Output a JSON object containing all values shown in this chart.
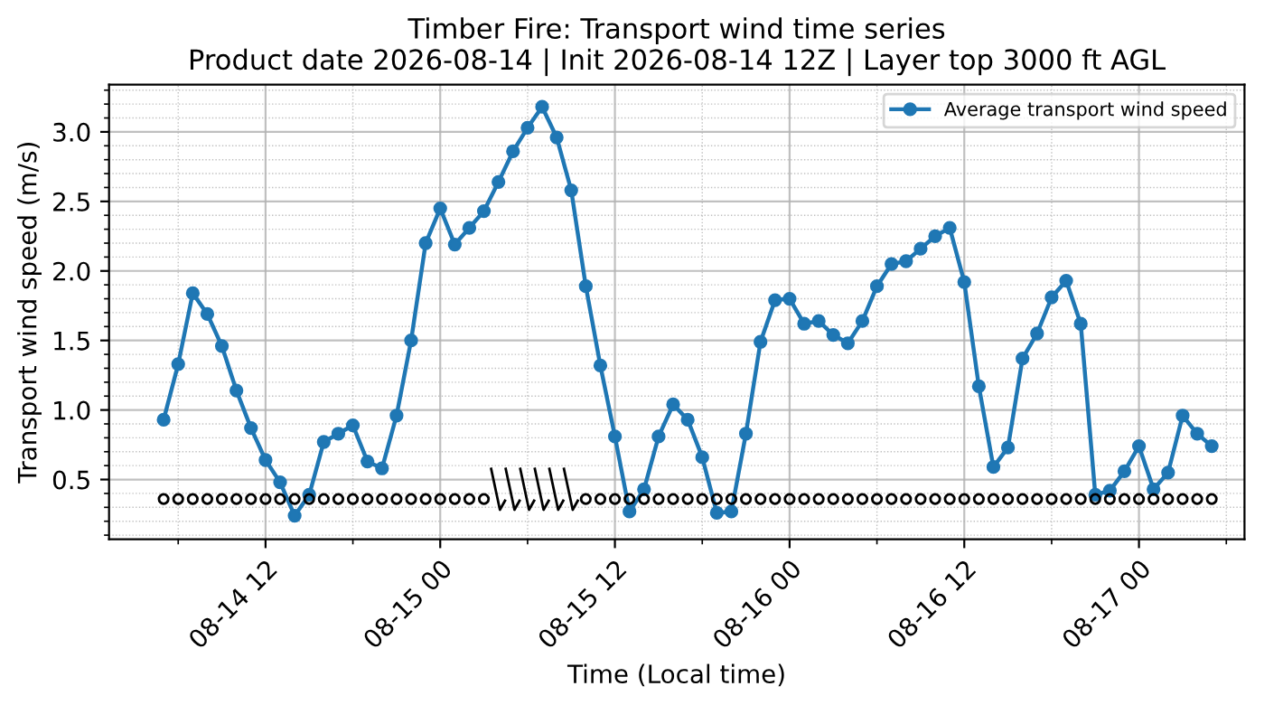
{
  "chart_data": {
    "type": "line",
    "title": "Timber Fire: Transport wind time series",
    "subtitle": "Product date 2026-08-14 | Init 2026-08-14 12Z | Layer top 3000 ft AGL",
    "xlabel": "Time (Local time)",
    "ylabel": "Transport wind speed (m/s)",
    "x": [
      "2026-08-14T05:00",
      "2026-08-14T06:00",
      "2026-08-14T07:00",
      "2026-08-14T08:00",
      "2026-08-14T09:00",
      "2026-08-14T10:00",
      "2026-08-14T11:00",
      "2026-08-14T12:00",
      "2026-08-14T13:00",
      "2026-08-14T14:00",
      "2026-08-14T15:00",
      "2026-08-14T16:00",
      "2026-08-14T17:00",
      "2026-08-14T18:00",
      "2026-08-14T19:00",
      "2026-08-14T20:00",
      "2026-08-14T21:00",
      "2026-08-14T22:00",
      "2026-08-14T23:00",
      "2026-08-15T00:00",
      "2026-08-15T01:00",
      "2026-08-15T02:00",
      "2026-08-15T03:00",
      "2026-08-15T04:00",
      "2026-08-15T05:00",
      "2026-08-15T06:00",
      "2026-08-15T07:00",
      "2026-08-15T08:00",
      "2026-08-15T09:00",
      "2026-08-15T10:00",
      "2026-08-15T11:00",
      "2026-08-15T12:00",
      "2026-08-15T13:00",
      "2026-08-15T14:00",
      "2026-08-15T15:00",
      "2026-08-15T16:00",
      "2026-08-15T17:00",
      "2026-08-15T18:00",
      "2026-08-15T19:00",
      "2026-08-15T20:00",
      "2026-08-15T21:00",
      "2026-08-15T22:00",
      "2026-08-15T23:00",
      "2026-08-16T00:00",
      "2026-08-16T01:00",
      "2026-08-16T02:00",
      "2026-08-16T03:00",
      "2026-08-16T04:00",
      "2026-08-16T05:00",
      "2026-08-16T06:00",
      "2026-08-16T07:00",
      "2026-08-16T08:00",
      "2026-08-16T09:00",
      "2026-08-16T10:00",
      "2026-08-16T11:00",
      "2026-08-16T12:00",
      "2026-08-16T13:00",
      "2026-08-16T14:00",
      "2026-08-16T15:00",
      "2026-08-16T16:00",
      "2026-08-16T17:00",
      "2026-08-16T18:00",
      "2026-08-16T19:00",
      "2026-08-16T20:00",
      "2026-08-16T21:00",
      "2026-08-16T22:00",
      "2026-08-16T23:00",
      "2026-08-17T00:00",
      "2026-08-17T01:00",
      "2026-08-17T02:00",
      "2026-08-17T03:00",
      "2026-08-17T04:00",
      "2026-08-17T05:00"
    ],
    "series": [
      {
        "name": "Average transport wind speed",
        "color": "#1f77b4",
        "values": [
          0.93,
          1.33,
          1.84,
          1.69,
          1.46,
          1.14,
          0.87,
          0.64,
          0.48,
          0.24,
          0.39,
          0.77,
          0.83,
          0.89,
          0.63,
          0.58,
          0.96,
          1.5,
          2.2,
          2.45,
          2.19,
          2.31,
          2.43,
          2.64,
          2.86,
          3.03,
          3.18,
          2.96,
          2.58,
          1.89,
          1.32,
          0.81,
          0.27,
          0.43,
          0.81,
          1.04,
          0.93,
          0.66,
          0.26,
          0.27,
          0.83,
          1.49,
          1.79,
          1.8,
          1.62,
          1.64,
          1.54,
          1.48,
          1.64,
          1.89,
          2.05,
          2.07,
          2.16,
          2.25,
          2.31,
          1.92,
          1.17,
          0.59,
          0.73,
          1.37,
          1.55,
          1.81,
          1.93,
          1.62,
          0.39,
          0.42,
          0.56,
          0.74,
          0.43,
          0.55,
          0.96,
          0.83,
          0.74
        ]
      },
      {
        "type": "scatter",
        "color": "#000000",
        "values": [
          0.36,
          0.36,
          0.36,
          0.36,
          0.36,
          0.36,
          0.36,
          0.36,
          0.36,
          0.36,
          0.36,
          0.36,
          0.36,
          0.36,
          0.36,
          0.36,
          0.36,
          0.36,
          0.36,
          0.36,
          0.36,
          0.36,
          0.36,
          null,
          null,
          null,
          null,
          null,
          null,
          0.36,
          0.36,
          0.36,
          0.36,
          0.36,
          0.36,
          0.36,
          0.36,
          0.36,
          0.36,
          0.36,
          0.36,
          0.36,
          0.36,
          0.36,
          0.36,
          0.36,
          0.36,
          0.36,
          0.36,
          0.36,
          0.36,
          0.36,
          0.36,
          0.36,
          0.36,
          0.36,
          0.36,
          0.36,
          0.36,
          0.36,
          0.36,
          0.36,
          0.36,
          0.36,
          0.36,
          0.36,
          0.36,
          0.36,
          0.36,
          0.36,
          0.36,
          0.36,
          0.36
        ]
      }
    ],
    "marker": "circle",
    "line_style": "solid",
    "grid": true,
    "legend": "top right",
    "xlim": [
      "2026-08-14T01:15",
      "2026-08-17T07:15"
    ],
    "xticks": [
      {
        "value": "2026-08-14T12:00",
        "label": "08-14 12"
      },
      {
        "value": "2026-08-15T00:00",
        "label": "08-15 00"
      },
      {
        "value": "2026-08-15T12:00",
        "label": "08-15 12"
      },
      {
        "value": "2026-08-16T00:00",
        "label": "08-16 00"
      },
      {
        "value": "2026-08-16T12:00",
        "label": "08-16 12"
      },
      {
        "value": "2026-08-17T00:00",
        "label": "08-17 00"
      }
    ],
    "ylim": [
      0.07,
      3.34
    ],
    "yticks": [
      {
        "value": 0.5,
        "label": "0.5"
      },
      {
        "value": 1.0,
        "label": "1.0"
      },
      {
        "value": 1.5,
        "label": "1.5"
      },
      {
        "value": 2.0,
        "label": "2.0"
      },
      {
        "value": 2.5,
        "label": "2.5"
      },
      {
        "value": 3.0,
        "label": "3.0"
      }
    ]
  }
}
